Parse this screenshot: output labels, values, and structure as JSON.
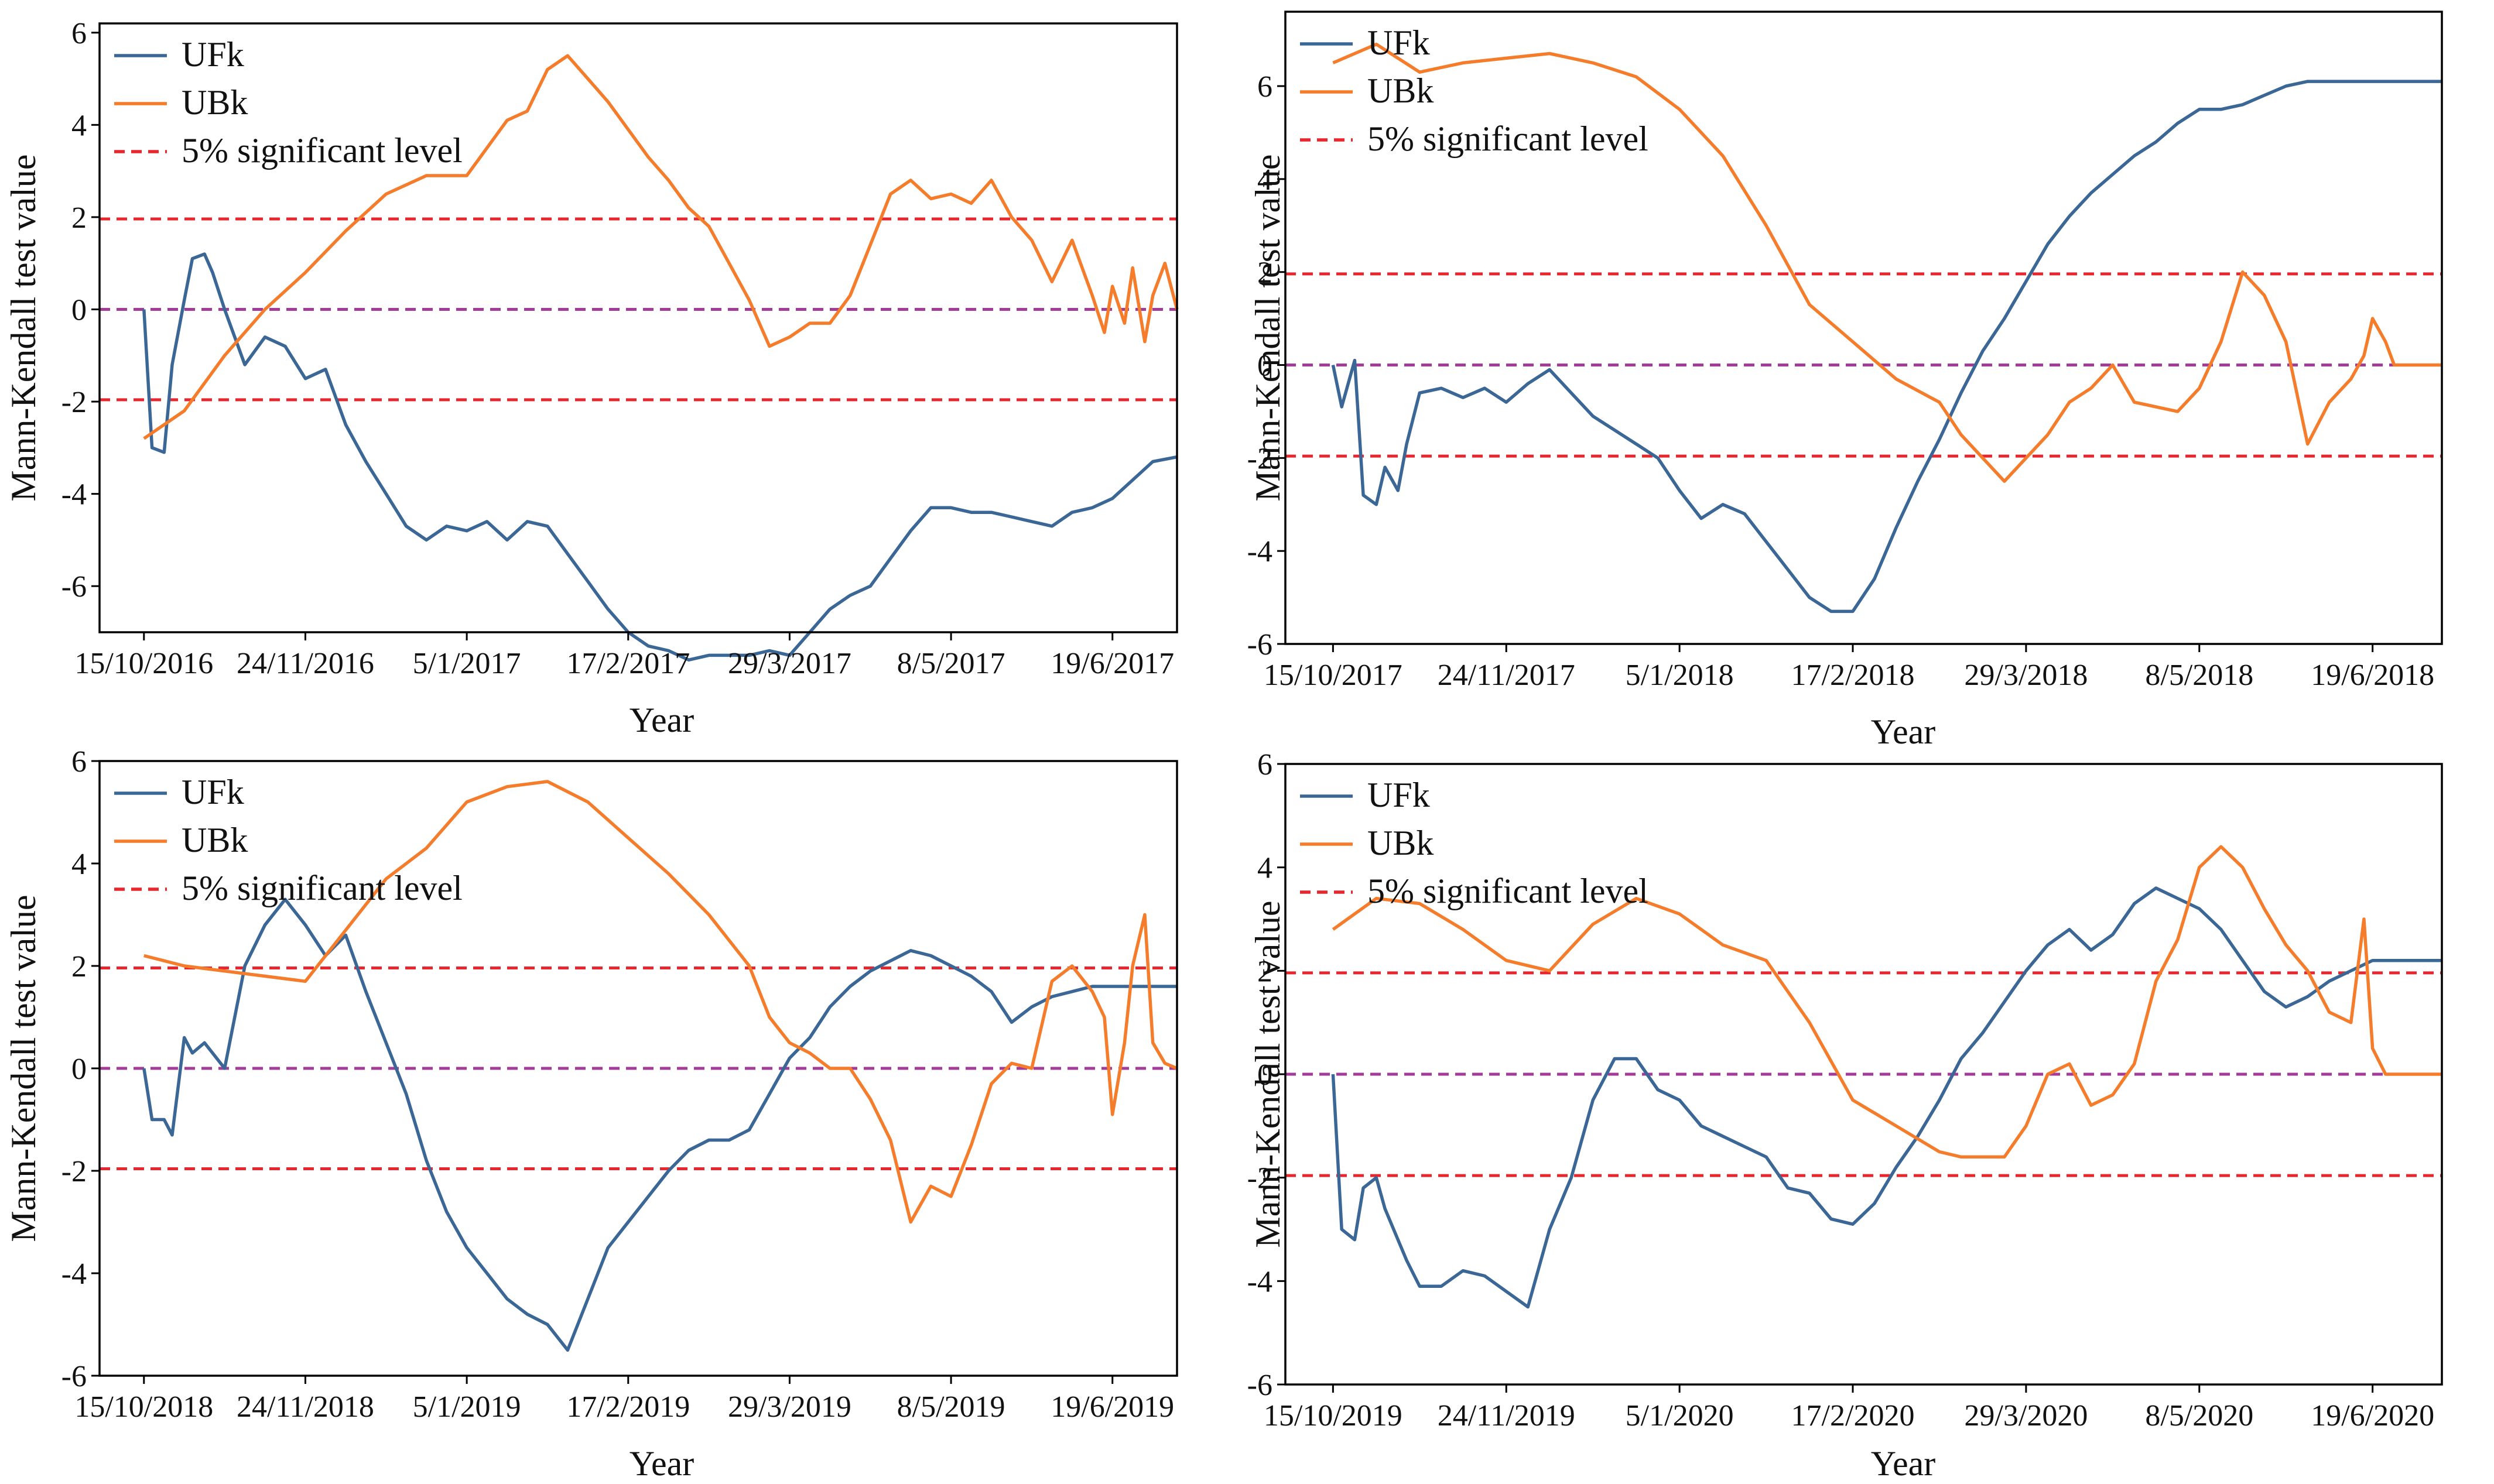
{
  "figure": {
    "background": "#ffffff"
  },
  "colors": {
    "ufk": "#3b6796",
    "ubk": "#f47c2a",
    "sig": "#e8262e",
    "zero": "#a33b99",
    "axis": "#000000"
  },
  "chart_data": [
    {
      "type": "line",
      "xlabel": "Year",
      "ylabel": "Mann-Kendall test value",
      "xticks": [
        "15/10/2016",
        "24/11/2016",
        "5/1/2017",
        "17/2/2017",
        "29/3/2017",
        "8/5/2017",
        "19/6/2017"
      ],
      "yticks": [
        "-6",
        "-4",
        "-2",
        "0",
        "2",
        "4",
        "6"
      ],
      "ytick_values": [
        -6,
        -4,
        -2,
        0,
        2,
        4,
        6
      ],
      "xlim": [
        -11,
        256
      ],
      "ylim": [
        -7.0,
        6.2
      ],
      "legend": [
        "UFk",
        "UBk",
        "5% significant level"
      ],
      "significance": 1.96,
      "series": [
        {
          "name": "UFk",
          "x": [
            0,
            2,
            5,
            7,
            10,
            12,
            15,
            17,
            20,
            25,
            30,
            35,
            40,
            45,
            50,
            55,
            60,
            65,
            70,
            75,
            80,
            85,
            90,
            95,
            100,
            105,
            110,
            115,
            120,
            125,
            130,
            135,
            140,
            145,
            150,
            155,
            160,
            165,
            170,
            175,
            180,
            185,
            190,
            195,
            200,
            205,
            210,
            215,
            220,
            225,
            230,
            235,
            240,
            245,
            250,
            256
          ],
          "values": [
            0,
            -3.0,
            -3.1,
            -1.2,
            0.2,
            1.1,
            1.2,
            0.8,
            0,
            -1.2,
            -0.6,
            -0.8,
            -1.5,
            -1.3,
            -2.5,
            -3.3,
            -4.0,
            -4.7,
            -5.0,
            -4.7,
            -4.8,
            -4.6,
            -5.0,
            -4.6,
            -4.7,
            -5.3,
            -5.9,
            -6.5,
            -7.0,
            -7.3,
            -7.4,
            -7.6,
            -7.5,
            -7.5,
            -7.5,
            -7.4,
            -7.5,
            -7.0,
            -6.5,
            -6.2,
            -6.0,
            -5.4,
            -4.8,
            -4.3,
            -4.3,
            -4.4,
            -4.4,
            -4.5,
            -4.6,
            -4.7,
            -4.4,
            -4.3,
            -4.1,
            -3.7,
            -3.3,
            -3.2
          ]
        },
        {
          "name": "UBk",
          "x": [
            0,
            10,
            20,
            30,
            40,
            50,
            60,
            70,
            80,
            90,
            95,
            100,
            105,
            110,
            115,
            120,
            125,
            130,
            135,
            140,
            145,
            150,
            155,
            160,
            165,
            170,
            175,
            180,
            185,
            190,
            195,
            200,
            205,
            210,
            215,
            220,
            225,
            230,
            235,
            238,
            240,
            243,
            245,
            248,
            250,
            253,
            256
          ],
          "values": [
            -2.8,
            -2.2,
            -1.0,
            0,
            0.8,
            1.7,
            2.5,
            2.9,
            2.9,
            4.1,
            4.3,
            5.2,
            5.5,
            5.0,
            4.5,
            3.9,
            3.3,
            2.8,
            2.2,
            1.8,
            1.0,
            0.2,
            -0.8,
            -0.6,
            -0.3,
            -0.3,
            0.3,
            1.4,
            2.5,
            2.8,
            2.4,
            2.5,
            2.3,
            2.8,
            2.0,
            1.5,
            0.6,
            1.5,
            0.3,
            -0.5,
            0.5,
            -0.3,
            0.9,
            -0.7,
            0.3,
            1.0,
            0
          ]
        }
      ]
    },
    {
      "type": "line",
      "xlabel": "Year",
      "ylabel": "Mann-Kendall test value",
      "xticks": [
        "15/10/2017",
        "24/11/2017",
        "5/1/2018",
        "17/2/2018",
        "29/3/2018",
        "8/5/2018",
        "19/6/2018"
      ],
      "yticks": [
        "-6",
        "-4",
        "-2",
        "0",
        "2",
        "4",
        "6"
      ],
      "ytick_values": [
        -6,
        -4,
        -2,
        0,
        2,
        4,
        6
      ],
      "xlim": [
        -11,
        256
      ],
      "ylim": [
        -6.0,
        7.6
      ],
      "legend": [
        "UFk",
        "UBk",
        "5% significant level"
      ],
      "significance": 1.96,
      "series": [
        {
          "name": "UFk",
          "x": [
            0,
            2,
            5,
            7,
            10,
            12,
            15,
            17,
            20,
            25,
            30,
            35,
            40,
            45,
            50,
            55,
            60,
            65,
            70,
            75,
            80,
            85,
            90,
            95,
            100,
            105,
            110,
            115,
            120,
            125,
            130,
            135,
            140,
            145,
            150,
            155,
            160,
            165,
            170,
            175,
            180,
            185,
            190,
            195,
            200,
            205,
            210,
            215,
            220,
            225,
            230,
            235,
            240,
            245,
            250,
            256
          ],
          "values": [
            0,
            -0.9,
            0.1,
            -2.8,
            -3.0,
            -2.2,
            -2.7,
            -1.7,
            -0.6,
            -0.5,
            -0.7,
            -0.5,
            -0.8,
            -0.4,
            -0.1,
            -0.6,
            -1.1,
            -1.4,
            -1.7,
            -2.0,
            -2.7,
            -3.3,
            -3.0,
            -3.2,
            -3.8,
            -4.4,
            -5.0,
            -5.3,
            -5.3,
            -4.6,
            -3.5,
            -2.5,
            -1.6,
            -0.6,
            0.3,
            1.0,
            1.8,
            2.6,
            3.2,
            3.7,
            4.1,
            4.5,
            4.8,
            5.2,
            5.5,
            5.5,
            5.6,
            5.8,
            6.0,
            6.1,
            6.1,
            6.1,
            6.1,
            6.1,
            6.1,
            6.1
          ]
        },
        {
          "name": "UBk",
          "x": [
            0,
            10,
            20,
            30,
            40,
            50,
            60,
            70,
            80,
            90,
            100,
            110,
            120,
            130,
            140,
            145,
            150,
            155,
            160,
            165,
            170,
            175,
            180,
            185,
            190,
            195,
            200,
            205,
            210,
            215,
            220,
            225,
            230,
            233,
            235,
            238,
            240,
            243,
            245,
            248,
            250,
            253,
            256
          ],
          "values": [
            6.5,
            6.9,
            6.3,
            6.5,
            6.6,
            6.7,
            6.5,
            6.2,
            5.5,
            4.5,
            3.0,
            1.3,
            0.5,
            -0.3,
            -0.8,
            -1.5,
            -2.0,
            -2.5,
            -2.0,
            -1.5,
            -0.8,
            -0.5,
            0,
            -0.8,
            -0.9,
            -1.0,
            -0.5,
            0.5,
            2.0,
            1.5,
            0.5,
            -1.7,
            -0.8,
            -0.5,
            -0.3,
            0.2,
            1.0,
            0.5,
            0,
            0,
            0,
            0,
            0
          ]
        }
      ]
    },
    {
      "type": "line",
      "xlabel": "Year",
      "ylabel": "Mann-Kendall test value",
      "xticks": [
        "15/10/2018",
        "24/11/2018",
        "5/1/2019",
        "17/2/2019",
        "29/3/2019",
        "8/5/2019",
        "19/6/2019"
      ],
      "yticks": [
        "-6",
        "-4",
        "-2",
        "0",
        "2",
        "4",
        "6"
      ],
      "ytick_values": [
        -6,
        -4,
        -2,
        0,
        2,
        4,
        6
      ],
      "xlim": [
        -11,
        256
      ],
      "ylim": [
        -6.0,
        6.0
      ],
      "legend": [
        "UFk",
        "UBk",
        "5% significant level"
      ],
      "significance": 1.96,
      "series": [
        {
          "name": "UFk",
          "x": [
            0,
            2,
            5,
            7,
            10,
            12,
            15,
            17,
            20,
            25,
            30,
            35,
            40,
            45,
            50,
            55,
            60,
            65,
            70,
            75,
            80,
            85,
            90,
            95,
            100,
            105,
            110,
            115,
            120,
            125,
            130,
            135,
            140,
            145,
            150,
            155,
            160,
            165,
            170,
            175,
            180,
            185,
            190,
            195,
            200,
            205,
            210,
            215,
            220,
            225,
            230,
            235,
            240,
            245,
            250,
            256
          ],
          "values": [
            0,
            -1.0,
            -1.0,
            -1.3,
            0.6,
            0.3,
            0.5,
            0.3,
            0.0,
            2.0,
            2.8,
            3.3,
            2.8,
            2.2,
            2.6,
            1.5,
            0.5,
            -0.5,
            -1.8,
            -2.8,
            -3.5,
            -4.0,
            -4.5,
            -4.8,
            -5.0,
            -5.5,
            -4.5,
            -3.5,
            -3.0,
            -2.5,
            -2.0,
            -1.6,
            -1.4,
            -1.4,
            -1.2,
            -0.5,
            0.2,
            0.6,
            1.2,
            1.6,
            1.9,
            2.1,
            2.3,
            2.2,
            2.0,
            1.8,
            1.5,
            0.9,
            1.2,
            1.4,
            1.5,
            1.6,
            1.6,
            1.6,
            1.6,
            1.6
          ]
        },
        {
          "name": "UBk",
          "x": [
            0,
            10,
            20,
            30,
            40,
            50,
            60,
            70,
            80,
            90,
            100,
            110,
            120,
            130,
            140,
            145,
            150,
            155,
            160,
            165,
            170,
            175,
            180,
            185,
            190,
            195,
            200,
            205,
            210,
            215,
            220,
            225,
            230,
            235,
            238,
            240,
            243,
            245,
            248,
            250,
            253,
            256
          ],
          "values": [
            2.2,
            2.0,
            1.9,
            1.8,
            1.7,
            2.7,
            3.7,
            4.3,
            5.2,
            5.5,
            5.6,
            5.2,
            4.5,
            3.8,
            3.0,
            2.5,
            2.0,
            1.0,
            0.5,
            0.3,
            0.0,
            0.0,
            -0.6,
            -1.4,
            -3.0,
            -2.3,
            -2.5,
            -1.5,
            -0.3,
            0.1,
            0.0,
            1.7,
            2.0,
            1.5,
            1.0,
            -0.9,
            0.5,
            2.0,
            3.0,
            0.5,
            0.1,
            0
          ]
        }
      ]
    },
    {
      "type": "line",
      "xlabel": "Year",
      "ylabel": "Mann-Kendall test value",
      "xticks": [
        "15/10/2019",
        "24/11/2019",
        "5/1/2020",
        "17/2/2020",
        "29/3/2020",
        "8/5/2020",
        "19/6/2020"
      ],
      "yticks": [
        "-6",
        "-4",
        "-2",
        "0",
        "2",
        "4",
        "6"
      ],
      "ytick_values": [
        -6,
        -4,
        -2,
        0,
        2,
        4,
        6
      ],
      "xlim": [
        -11,
        256
      ],
      "ylim": [
        -6.0,
        6.0
      ],
      "legend": [
        "UFk",
        "UBk",
        "5% significant level"
      ],
      "significance": 1.96,
      "series": [
        {
          "name": "UFk",
          "x": [
            0,
            2,
            5,
            7,
            10,
            12,
            15,
            17,
            20,
            25,
            30,
            35,
            40,
            45,
            50,
            55,
            60,
            65,
            70,
            75,
            80,
            85,
            90,
            95,
            100,
            105,
            110,
            115,
            120,
            125,
            130,
            135,
            140,
            145,
            150,
            155,
            160,
            165,
            170,
            175,
            180,
            185,
            190,
            195,
            200,
            205,
            210,
            215,
            220,
            225,
            230,
            235,
            240,
            245,
            250,
            256
          ],
          "values": [
            0,
            -3.0,
            -3.2,
            -2.2,
            -2.0,
            -2.6,
            -3.2,
            -3.6,
            -4.1,
            -4.1,
            -3.8,
            -3.9,
            -4.2,
            -4.5,
            -3.0,
            -2.0,
            -0.5,
            0.3,
            0.3,
            -0.3,
            -0.5,
            -1.0,
            -1.2,
            -1.4,
            -1.6,
            -2.2,
            -2.3,
            -2.8,
            -2.9,
            -2.5,
            -1.8,
            -1.2,
            -0.5,
            0.3,
            0.8,
            1.4,
            2.0,
            2.5,
            2.8,
            2.4,
            2.7,
            3.3,
            3.6,
            3.4,
            3.2,
            2.8,
            2.2,
            1.6,
            1.3,
            1.5,
            1.8,
            2.0,
            2.2,
            2.2,
            2.2,
            2.2
          ]
        },
        {
          "name": "UBk",
          "x": [
            0,
            10,
            20,
            30,
            40,
            50,
            60,
            70,
            80,
            90,
            100,
            110,
            120,
            130,
            140,
            145,
            150,
            155,
            160,
            165,
            170,
            175,
            180,
            185,
            190,
            195,
            200,
            205,
            210,
            215,
            220,
            225,
            230,
            235,
            238,
            240,
            243,
            245,
            248,
            250,
            253,
            256
          ],
          "values": [
            2.8,
            3.4,
            3.3,
            2.8,
            2.2,
            2.0,
            2.9,
            3.4,
            3.1,
            2.5,
            2.2,
            1.0,
            -0.5,
            -1.0,
            -1.5,
            -1.6,
            -1.6,
            -1.6,
            -1.0,
            0,
            0.2,
            -0.6,
            -0.4,
            0.2,
            1.8,
            2.6,
            4.0,
            4.4,
            4.0,
            3.2,
            2.5,
            2.0,
            1.2,
            1.0,
            3.0,
            0.5,
            0,
            0,
            0,
            0,
            0,
            0
          ]
        }
      ]
    }
  ]
}
